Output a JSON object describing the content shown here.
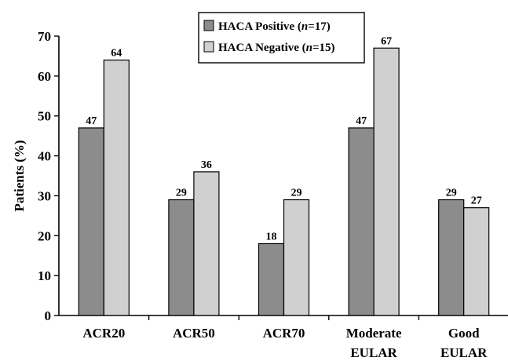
{
  "chart_data": {
    "type": "bar",
    "ylabel": "Patients (%)",
    "ylim": [
      0,
      70
    ],
    "yticks": [
      "0",
      "10",
      "20",
      "30",
      "40",
      "50",
      "60",
      "70"
    ],
    "grid": false,
    "legend_position": "top-center",
    "categories": [
      [
        "ACR20"
      ],
      [
        "ACR50"
      ],
      [
        "ACR70"
      ],
      [
        "Moderate",
        "EULAR"
      ],
      [
        "Good",
        "EULAR"
      ]
    ],
    "series": [
      {
        "name": "HACA Positive (n=17)",
        "legend_main": "HACA Positive (",
        "legend_italic": "n",
        "legend_tail": "=17)",
        "color": "#8c8c8c",
        "values": [
          47,
          29,
          18,
          47,
          29
        ]
      },
      {
        "name": "HACA Negative (n=15)",
        "legend_main": "HACA Negative (",
        "legend_italic": "n",
        "legend_tail": "=15)",
        "color": "#d0d0d0",
        "values": [
          64,
          36,
          29,
          67,
          27
        ]
      }
    ]
  }
}
